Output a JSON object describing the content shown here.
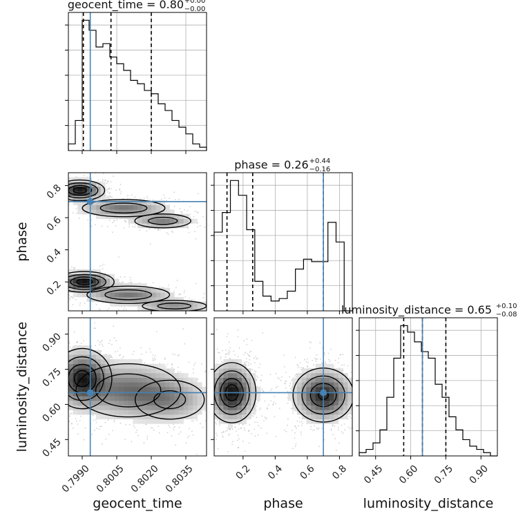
{
  "chart_data": {
    "type": "corner",
    "truth_color": "#4682b4",
    "parameters": [
      {
        "name": "geocent_time",
        "label": "geocent_time",
        "range": [
          0.7984,
          0.8044
        ],
        "ticks": [
          0.799,
          0.8005,
          0.802,
          0.8035
        ],
        "tick_labels": [
          "0.7990",
          "0.8005",
          "0.8020",
          "0.8035"
        ],
        "truth": 0.79935,
        "quantiles": [
          0.79905,
          0.80025,
          0.802
        ],
        "title_main": "geocent_time = 0.80",
        "title_plus": "+0.00",
        "title_minus": "−0.00",
        "hist": [
          2,
          9,
          39,
          36,
          31,
          32,
          28,
          26,
          24,
          21,
          20,
          18,
          17,
          14,
          12,
          9,
          7,
          5,
          2,
          1
        ]
      },
      {
        "name": "phase",
        "label": "phase",
        "range": [
          0.02,
          0.88
        ],
        "ticks": [
          0.2,
          0.4,
          0.6,
          0.8
        ],
        "tick_labels": [
          "0.2",
          "0.4",
          "0.6",
          "0.8"
        ],
        "truth": 0.7,
        "quantiles": [
          0.1,
          0.26,
          0.7
        ],
        "title_main": "phase = 0.26",
        "title_plus": "+0.44",
        "title_minus": "−0.16",
        "hist": [
          32,
          40,
          53,
          47,
          33,
          12,
          6,
          4,
          5,
          8,
          17,
          21,
          20,
          20,
          36,
          28,
          0
        ]
      },
      {
        "name": "luminosity_distance",
        "label": "luminosity_distance",
        "range": [
          0.38,
          0.97
        ],
        "ticks": [
          0.45,
          0.6,
          0.75,
          0.9
        ],
        "tick_labels": [
          "0.45",
          "0.60",
          "0.75",
          "0.90"
        ],
        "truth": 0.65,
        "quantiles": [
          0.57,
          0.65,
          0.75
        ],
        "title_main": "luminosity_distance = 0.65",
        "title_plus": "+0.10",
        "title_minus": "−0.08",
        "hist": [
          1,
          2,
          4,
          8,
          18,
          30,
          40,
          38,
          35,
          32,
          30,
          22,
          18,
          12,
          8,
          5,
          3,
          2,
          1,
          0
        ]
      }
    ],
    "phase_vs_geocent_time": {
      "modes": [
        {
          "x": 0.7989,
          "y": 0.77,
          "sx": 0.0005,
          "sy": 0.03,
          "weight": 1.0
        },
        {
          "x": 0.8008,
          "y": 0.66,
          "sx": 0.001,
          "sy": 0.03,
          "weight": 0.5
        },
        {
          "x": 0.8025,
          "y": 0.58,
          "sx": 0.0007,
          "sy": 0.025,
          "weight": 0.45
        },
        {
          "x": 0.7991,
          "y": 0.2,
          "sx": 0.0006,
          "sy": 0.03,
          "weight": 1.0
        },
        {
          "x": 0.801,
          "y": 0.12,
          "sx": 0.001,
          "sy": 0.03,
          "weight": 0.5
        },
        {
          "x": 0.803,
          "y": 0.05,
          "sx": 0.0008,
          "sy": 0.02,
          "weight": 0.45
        }
      ]
    },
    "luminosity_distance_vs_geocent_time": {
      "modes": [
        {
          "x": 0.799,
          "y": 0.71,
          "sx": 0.0006,
          "sy": 0.06,
          "weight": 1.0
        },
        {
          "x": 0.801,
          "y": 0.66,
          "sx": 0.0012,
          "sy": 0.06,
          "weight": 0.6
        },
        {
          "x": 0.8028,
          "y": 0.62,
          "sx": 0.0009,
          "sy": 0.05,
          "weight": 0.4
        }
      ]
    },
    "luminosity_distance_vs_phase": {
      "modes": [
        {
          "x": 0.13,
          "y": 0.65,
          "sx": 0.07,
          "sy": 0.06,
          "weight": 1.0
        },
        {
          "x": 0.7,
          "y": 0.64,
          "sx": 0.09,
          "sy": 0.055,
          "weight": 0.9
        }
      ]
    }
  }
}
